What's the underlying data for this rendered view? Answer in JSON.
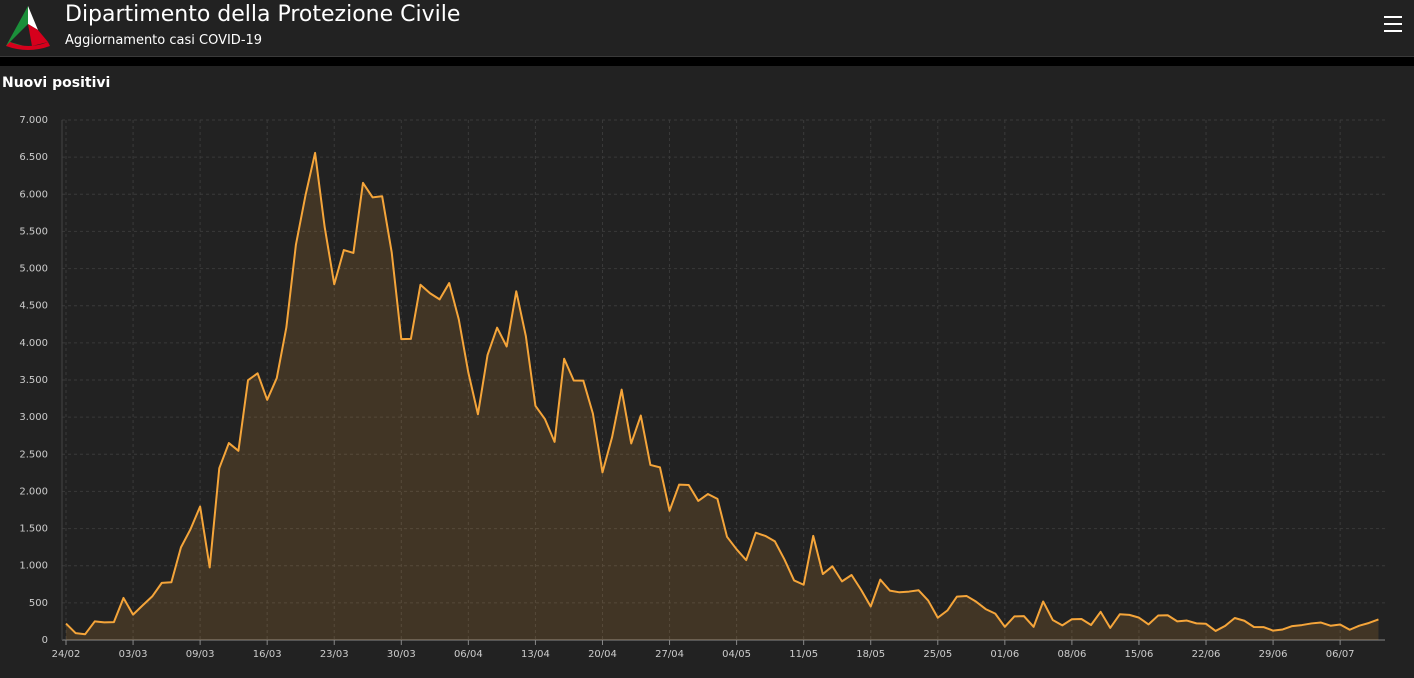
{
  "header": {
    "title": "Dipartimento della Protezione Civile",
    "subtitle": "Aggiornamento casi COVID-19"
  },
  "chart_data": {
    "type": "area",
    "title": "Nuovi positivi",
    "categories": [
      "24/02",
      null,
      null,
      null,
      null,
      null,
      null,
      "03/03",
      null,
      null,
      null,
      null,
      null,
      null,
      "09/03",
      null,
      null,
      null,
      null,
      null,
      null,
      "16/03",
      null,
      null,
      null,
      null,
      null,
      null,
      "23/03",
      null,
      null,
      null,
      null,
      null,
      null,
      "30/03",
      null,
      null,
      null,
      null,
      null,
      null,
      "06/04",
      null,
      null,
      null,
      null,
      null,
      null,
      "13/04",
      null,
      null,
      null,
      null,
      null,
      null,
      "20/04",
      null,
      null,
      null,
      null,
      null,
      null,
      "27/04",
      null,
      null,
      null,
      null,
      null,
      null,
      "04/05",
      null,
      null,
      null,
      null,
      null,
      null,
      "11/05",
      null,
      null,
      null,
      null,
      null,
      null,
      "18/05",
      null,
      null,
      null,
      null,
      null,
      null,
      "25/05",
      null,
      null,
      null,
      null,
      null,
      null,
      "01/06",
      null,
      null,
      null,
      null,
      null,
      null,
      "08/06",
      null,
      null,
      null,
      null,
      null,
      null,
      "15/06",
      null,
      null,
      null,
      null,
      null,
      null,
      "22/06",
      null,
      null,
      null,
      null,
      null,
      null,
      "29/06",
      null,
      null,
      null,
      null,
      null,
      null,
      "06/07",
      null,
      null,
      null,
      null
    ],
    "values": [
      221,
      93,
      78,
      250,
      238,
      240,
      566,
      342,
      466,
      587,
      769,
      778,
      1247,
      1492,
      1797,
      977,
      2313,
      2651,
      2547,
      3497,
      3590,
      3233,
      3526,
      4207,
      5322,
      5986,
      6557,
      5560,
      4789,
      5249,
      5210,
      6153,
      5959,
      5974,
      5217,
      4050,
      4053,
      4782,
      4668,
      4585,
      4805,
      4316,
      3599,
      3039,
      3836,
      4204,
      3951,
      4694,
      4092,
      3153,
      2972,
      2667,
      3786,
      3493,
      3491,
      3047,
      2256,
      2729,
      3370,
      2646,
      3021,
      2357,
      2324,
      1739,
      2091,
      2086,
      1872,
      1965,
      1900,
      1389,
      1221,
      1075,
      1444,
      1401,
      1327,
      1083,
      802,
      744,
      1402,
      888,
      992,
      789,
      875,
      675,
      451,
      813,
      665,
      642,
      652,
      669,
      531,
      300,
      397,
      584,
      593,
      516,
      416,
      355,
      178,
      318,
      321,
      177,
      518,
      270,
      197,
      280,
      283,
      202,
      379,
      163,
      346,
      338,
      301,
      210,
      329,
      333,
      251,
      262,
      224,
      218,
      122,
      190,
      296,
      259,
      175,
      174,
      126,
      142,
      187,
      201,
      223,
      235,
      192,
      208,
      138,
      193,
      229,
      276
    ],
    "color": "#f5a53a",
    "ylim": [
      0,
      7000
    ],
    "yticks": [
      0,
      500,
      {
        "value": 1000,
        "label": "1.000"
      },
      {
        "value": 1500,
        "label": "1.500"
      },
      {
        "value": 2000,
        "label": "2.000"
      },
      {
        "value": 2500,
        "label": "2.500"
      },
      {
        "value": 3000,
        "label": "3.000"
      },
      {
        "value": 3500,
        "label": "3.500"
      },
      {
        "value": 4000,
        "label": "4.000"
      },
      {
        "value": 4500,
        "label": "4.500"
      },
      {
        "value": 5000,
        "label": "5.000"
      },
      {
        "value": 5500,
        "label": "5.500"
      },
      {
        "value": 6000,
        "label": "6.000"
      },
      {
        "value": 6500,
        "label": "6.500"
      },
      {
        "value": 7000,
        "label": "7.000"
      }
    ],
    "grid": true
  }
}
